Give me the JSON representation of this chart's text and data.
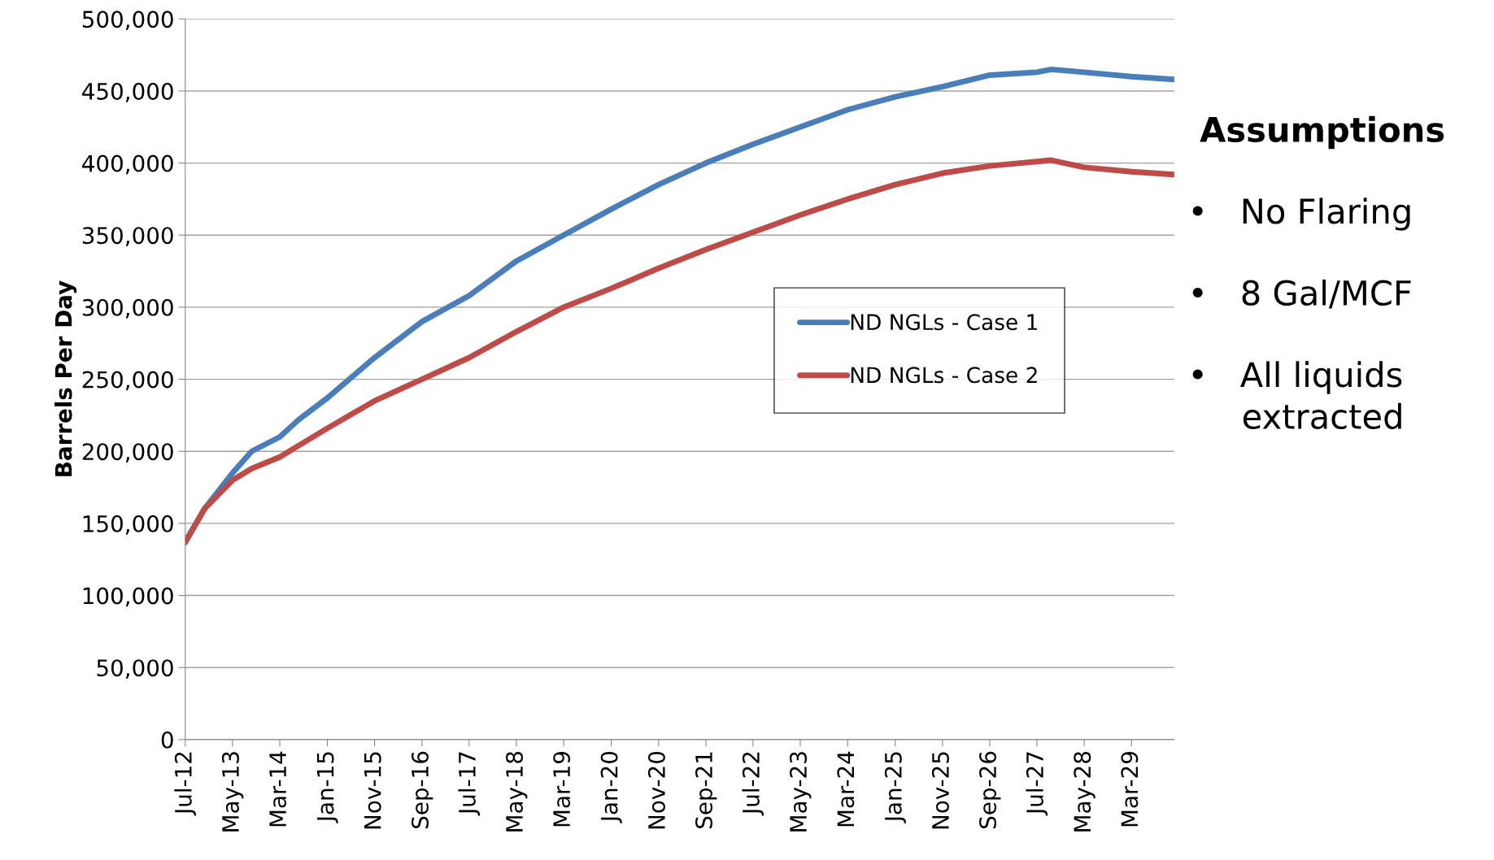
{
  "chart_data": {
    "type": "line",
    "ylabel": "Barrels Per Day",
    "x": [
      "2012-07",
      "2012-11",
      "2013-05",
      "2013-09",
      "2014-03",
      "2014-07",
      "2015-01",
      "2015-11",
      "2016-09",
      "2017-07",
      "2018-05",
      "2019-03",
      "2020-01",
      "2020-11",
      "2021-09",
      "2022-07",
      "2023-05",
      "2024-03",
      "2025-01",
      "2025-11",
      "2026-09",
      "2027-07",
      "2027-10",
      "2028-05",
      "2029-03",
      "2029-12"
    ],
    "series": [
      {
        "name": "ND NGLs - Case 1",
        "color": "#4a7ebb",
        "values": [
          137000,
          160000,
          185000,
          200000,
          210000,
          222000,
          237000,
          265000,
          290000,
          308000,
          332000,
          350000,
          368000,
          385000,
          400000,
          413000,
          425000,
          437000,
          446000,
          453000,
          461000,
          463000,
          465000,
          463000,
          460000,
          458000
        ]
      },
      {
        "name": "ND NGLs - Case 2",
        "color": "#be4b48",
        "values": [
          137000,
          160000,
          180000,
          188000,
          196000,
          204000,
          216000,
          235000,
          250000,
          265000,
          283000,
          300000,
          313000,
          327000,
          340000,
          352000,
          364000,
          375000,
          385000,
          393000,
          398000,
          401000,
          402000,
          397000,
          394000,
          392000
        ]
      }
    ],
    "xlim": [
      "2012-07",
      "2029-12"
    ],
    "xticks": [
      {
        "value": "2012-07",
        "label": "Jul-12"
      },
      {
        "value": "2013-05",
        "label": "May-13"
      },
      {
        "value": "2014-03",
        "label": "Mar-14"
      },
      {
        "value": "2015-01",
        "label": "Jan-15"
      },
      {
        "value": "2015-11",
        "label": "Nov-15"
      },
      {
        "value": "2016-09",
        "label": "Sep-16"
      },
      {
        "value": "2017-07",
        "label": "Jul-17"
      },
      {
        "value": "2018-05",
        "label": "May-18"
      },
      {
        "value": "2019-03",
        "label": "Mar-19"
      },
      {
        "value": "2020-01",
        "label": "Jan-20"
      },
      {
        "value": "2020-11",
        "label": "Nov-20"
      },
      {
        "value": "2021-09",
        "label": "Sep-21"
      },
      {
        "value": "2022-07",
        "label": "Jul-22"
      },
      {
        "value": "2023-05",
        "label": "May-23"
      },
      {
        "value": "2024-03",
        "label": "Mar-24"
      },
      {
        "value": "2025-01",
        "label": "Jan-25"
      },
      {
        "value": "2025-11",
        "label": "Nov-25"
      },
      {
        "value": "2026-09",
        "label": "Sep-26"
      },
      {
        "value": "2027-07",
        "label": "Jul-27"
      },
      {
        "value": "2028-05",
        "label": "May-28"
      },
      {
        "value": "2029-03",
        "label": "Mar-29"
      }
    ],
    "ylim": [
      0,
      500000
    ],
    "yticks": [
      {
        "value": 0,
        "label": "0"
      },
      {
        "value": 50000,
        "label": "50,000"
      },
      {
        "value": 100000,
        "label": "100,000"
      },
      {
        "value": 150000,
        "label": "150,000"
      },
      {
        "value": 200000,
        "label": "200,000"
      },
      {
        "value": 250000,
        "label": "250,000"
      },
      {
        "value": 300000,
        "label": "300,000"
      },
      {
        "value": 350000,
        "label": "350,000"
      },
      {
        "value": 400000,
        "label": "400,000"
      },
      {
        "value": 450000,
        "label": "450,000"
      },
      {
        "value": 500000,
        "label": "500,000"
      }
    ],
    "grid": "y",
    "legend": "right",
    "marker": "none",
    "line_style": "solid",
    "annotations": [
      "Assumptions",
      "•   No Flaring",
      "•   8 Gal/MCF",
      "•   All liquids\n     extracted"
    ]
  }
}
